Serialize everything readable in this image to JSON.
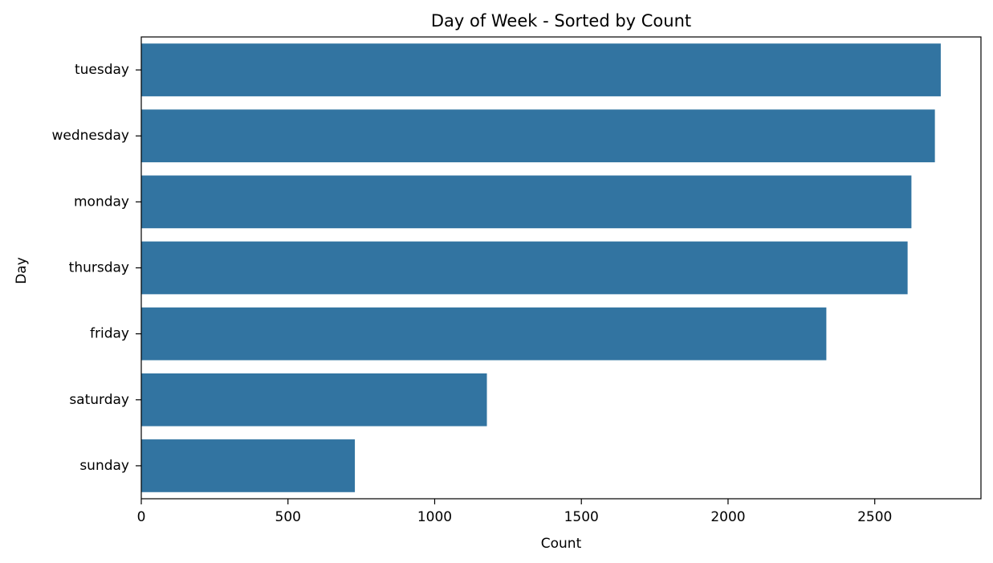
{
  "chart_data": {
    "type": "bar",
    "orientation": "horizontal",
    "title": "Day of Week - Sorted by Count",
    "xlabel": "Count",
    "ylabel": "Day",
    "categories": [
      "tuesday",
      "wednesday",
      "monday",
      "thursday",
      "friday",
      "saturday",
      "sunday"
    ],
    "values": [
      2725,
      2705,
      2625,
      2612,
      2335,
      1178,
      728
    ],
    "xlim": [
      0,
      2862
    ],
    "xticks": [
      0,
      500,
      1000,
      1500,
      2000,
      2500
    ],
    "grid": false,
    "bar_color": "#3274a1"
  }
}
